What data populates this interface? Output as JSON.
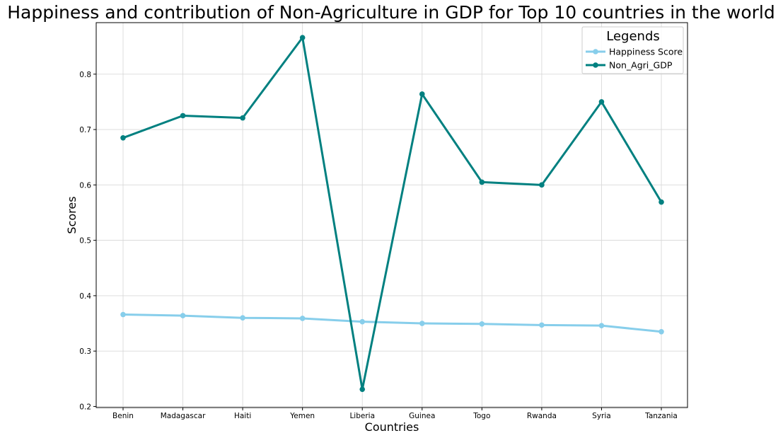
{
  "chart_data": {
    "type": "line",
    "title": "Happiness and contribution of Non-Agriculture in GDP for Top 10 countries in the world",
    "xlabel": "Countries",
    "ylabel": "Scores",
    "ylim": [
      0.198,
      0.893
    ],
    "yticks": [
      "0.2",
      "0.3",
      "0.4",
      "0.5",
      "0.6",
      "0.7",
      "0.8"
    ],
    "grid": true,
    "legend": {
      "title": "Legends",
      "placement": "top-right"
    },
    "categories": [
      "Benin",
      "Madagascar",
      "Haiti",
      "Yemen",
      "Liberia",
      "Guinea",
      "Togo",
      "Rwanda",
      "Syria",
      "Tanzania"
    ],
    "series": [
      {
        "name": "Happiness Score",
        "color": "#87ceeb",
        "values": [
          0.366,
          0.364,
          0.36,
          0.359,
          0.353,
          0.35,
          0.349,
          0.347,
          0.346,
          0.335
        ]
      },
      {
        "name": "Non_Agri_GDP",
        "color": "#008080",
        "values": [
          0.685,
          0.725,
          0.721,
          0.866,
          0.231,
          0.764,
          0.605,
          0.6,
          0.75,
          0.569
        ]
      }
    ]
  }
}
